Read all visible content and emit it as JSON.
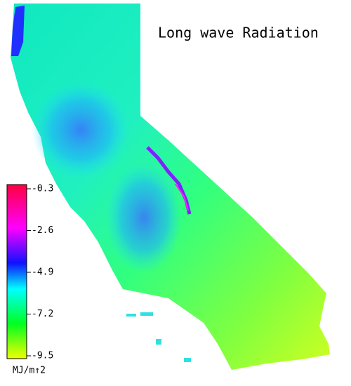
{
  "title": "Long wave Radiation",
  "colorbar": {
    "lim": [
      -9.5,
      -0.3
    ],
    "ticks": [
      -0.3,
      -2.6,
      -4.9,
      -7.2,
      -9.5
    ],
    "unit": "MJ/m↑2"
  }
}
